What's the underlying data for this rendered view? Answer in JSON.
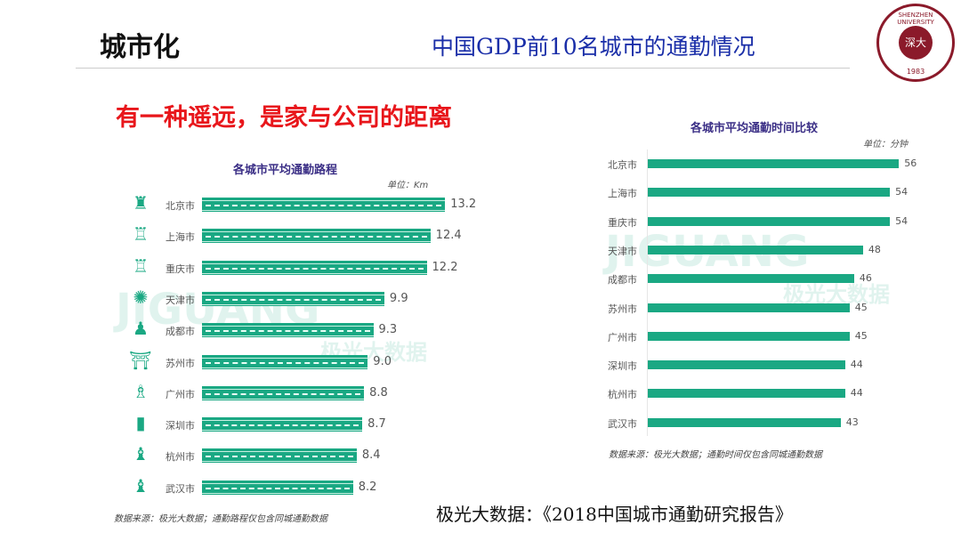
{
  "header": {
    "topic": "城市化",
    "title": "中国GDP前10名城市的通勤情况"
  },
  "seal": {
    "text": "SHENZHEN UNIVERSITY",
    "year": "1983",
    "center": "深大"
  },
  "subtitle": "有一种遥远，是家与公司的距离",
  "watermark": {
    "brand": "JIGUANG",
    "cn": "极光大数据"
  },
  "footer": "极光大数据：《2018中国城市通勤研究报告》",
  "colors": {
    "bar": "#1aa883",
    "title": "#3b2f86",
    "subtitle": "#e8161b",
    "header": "#1a2ea8"
  },
  "chart_data": [
    {
      "type": "bar",
      "orientation": "horizontal",
      "title": "各城市平均通勤路程",
      "unit": "单位：Km",
      "categories": [
        "北京市",
        "上海市",
        "重庆市",
        "天津市",
        "成都市",
        "苏州市",
        "广州市",
        "深圳市",
        "杭州市",
        "武汉市"
      ],
      "values": [
        13.2,
        12.4,
        12.2,
        9.9,
        9.3,
        9.0,
        8.8,
        8.7,
        8.4,
        8.2
      ],
      "value_labels": [
        "13.2",
        "12.4",
        "12.2",
        "9.9",
        "9.3",
        "9.0",
        "8.8",
        "8.7",
        "8.4",
        "8.2"
      ],
      "icons": [
        "temple-icon",
        "tower-icon",
        "tower-icon",
        "ferris-wheel-icon",
        "statue-icon",
        "gate-icon",
        "canton-tower-icon",
        "skyscraper-icon",
        "pagoda-icon",
        "pagoda-icon"
      ],
      "source": "数据来源：极光大数据；通勤路程仅包含同城通勤数据"
    },
    {
      "type": "bar",
      "orientation": "horizontal",
      "title": "各城市平均通勤时间比较",
      "unit": "单位：分钟",
      "categories": [
        "北京市",
        "上海市",
        "重庆市",
        "天津市",
        "成都市",
        "苏州市",
        "广州市",
        "深圳市",
        "杭州市",
        "武汉市"
      ],
      "values": [
        56,
        54,
        54,
        48,
        46,
        45,
        45,
        44,
        44,
        43
      ],
      "source": "数据来源：极光大数据；通勤时间仅包含同城通勤数据"
    }
  ]
}
